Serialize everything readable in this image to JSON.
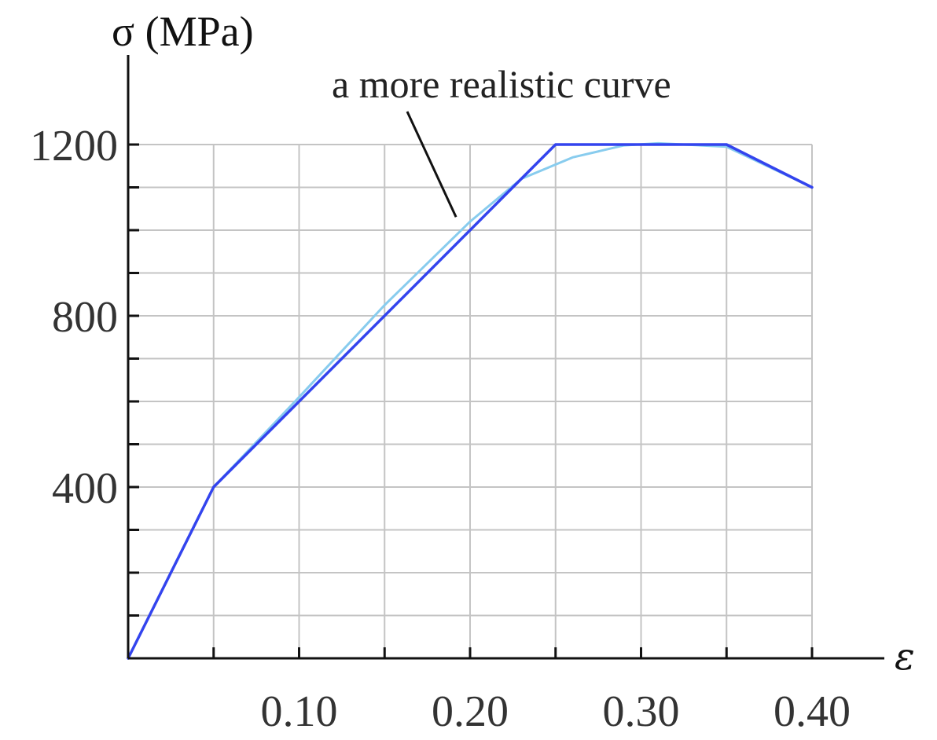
{
  "chart_data": {
    "type": "line",
    "title": "",
    "ylabel": "σ (MPa)",
    "xlabel": "ε",
    "xlim": [
      0,
      0.4
    ],
    "ylim": [
      0,
      1200
    ],
    "x_tick_labels": [
      {
        "value": 0.1,
        "label": "0.10"
      },
      {
        "value": 0.2,
        "label": "0.20"
      },
      {
        "value": 0.3,
        "label": "0.30"
      },
      {
        "value": 0.4,
        "label": "0.40"
      }
    ],
    "y_tick_labels": [
      {
        "value": 400,
        "label": "400"
      },
      {
        "value": 800,
        "label": "800"
      },
      {
        "value": 1200,
        "label": "1200"
      }
    ],
    "x_gridlines": [
      0.05,
      0.1,
      0.15,
      0.2,
      0.25,
      0.3,
      0.35,
      0.4
    ],
    "y_gridlines": [
      100,
      200,
      300,
      400,
      500,
      600,
      700,
      800,
      900,
      1000,
      1100,
      1200
    ],
    "grid": true,
    "series": [
      {
        "color": "#3344ee",
        "x": [
          0,
          0.05,
          0.25,
          0.35,
          0.4
        ],
        "y": [
          0,
          400,
          1200,
          1200,
          1100
        ]
      },
      {
        "color": "#88ccee",
        "x": [
          0.05,
          0.1,
          0.15,
          0.2,
          0.23,
          0.26,
          0.29,
          0.31,
          0.35,
          0.4
        ],
        "y": [
          400,
          610,
          825,
          1020,
          1120,
          1170,
          1198,
          1203,
          1195,
          1100
        ]
      }
    ],
    "annotations": [
      {
        "text": "a more realistic curve",
        "target": {
          "x": 0.195,
          "y": 1005
        }
      }
    ]
  }
}
